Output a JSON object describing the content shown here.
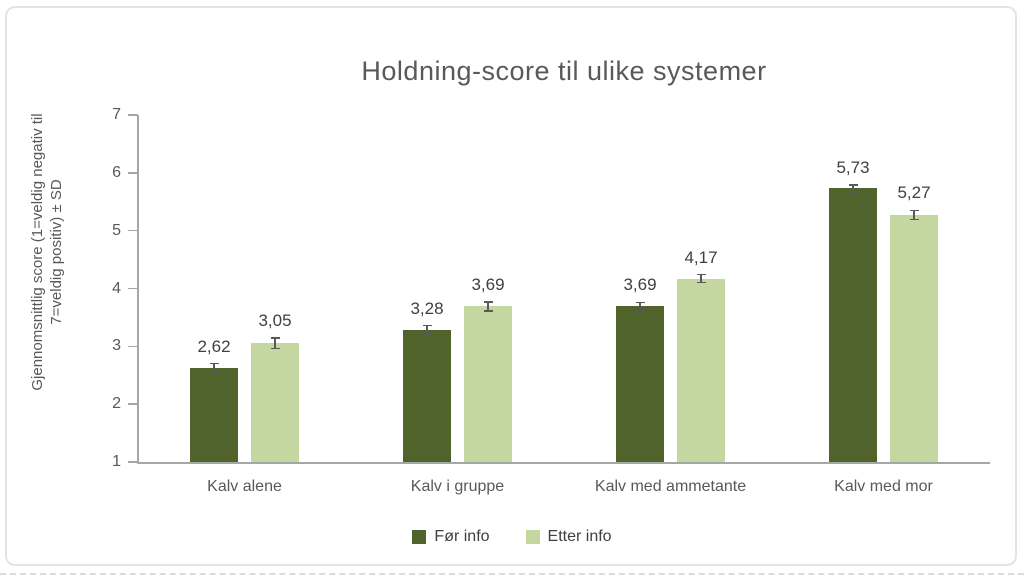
{
  "page": {
    "background": "#ffffff"
  },
  "chart_data": {
    "type": "bar",
    "title": "Holdning-score til ulike systemer",
    "categories": [
      "Kalv alene",
      "Kalv i gruppe",
      "Kalv med ammetante",
      "Kalv med mor"
    ],
    "series": [
      {
        "name": "Før info",
        "color": "#50632b",
        "values": [
          2.62,
          3.28,
          3.69,
          5.73
        ],
        "labels": [
          "2,62",
          "3,28",
          "3,69",
          "5,73"
        ],
        "errors": [
          0.08,
          0.08,
          0.07,
          0.06
        ]
      },
      {
        "name": "Etter info",
        "color": "#c5d7a0",
        "values": [
          3.05,
          3.69,
          4.17,
          5.27
        ],
        "labels": [
          "3,05",
          "3,69",
          "4,17",
          "5,27"
        ],
        "errors": [
          0.09,
          0.08,
          0.07,
          0.08
        ]
      }
    ],
    "ylabel_line1": "Gjennomsnittlig score (1=veldig negativ til",
    "ylabel_line2": "7=veldig positiv) ± SD",
    "ylim": [
      1,
      7
    ],
    "yticks": [
      1,
      2,
      3,
      4,
      5,
      6,
      7
    ],
    "grid": false,
    "legend_position": "bottom",
    "decimal_separator": ","
  },
  "colors": {
    "title_text": "#595959",
    "axis_text": "#595959",
    "data_label_text": "#404040",
    "axis_line": "#a6a6a6",
    "error_bar": "#595959",
    "frame_border": "#e4e4e4"
  }
}
